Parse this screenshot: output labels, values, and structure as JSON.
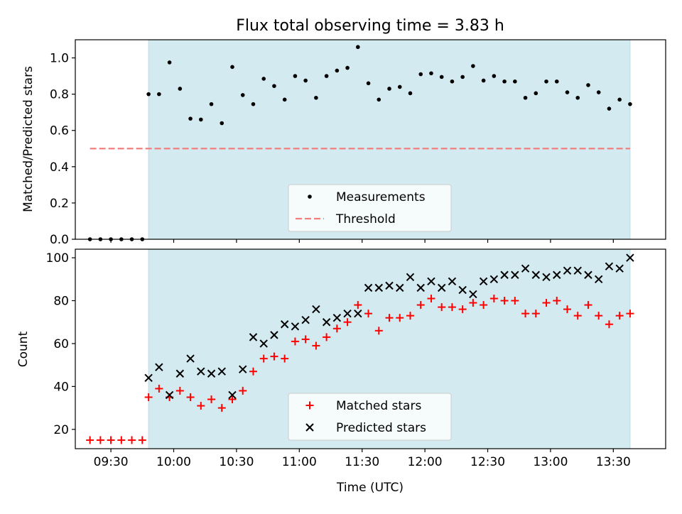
{
  "chart_data": [
    {
      "type": "scatter",
      "title": "Flux total observing time = 3.83 h",
      "xlabel": "",
      "ylabel": "Matched/Predicted stars",
      "ylim": [
        0,
        1.1
      ],
      "yticks": [
        "0.0",
        "0.2",
        "0.4",
        "0.6",
        "0.8",
        "1.0"
      ],
      "x_axis": "time",
      "xlim": [
        "09:13",
        "13:55"
      ],
      "shaded_region": {
        "from": "09:48",
        "to": "13:38",
        "color": "#d3eaf0"
      },
      "threshold": {
        "value": 0.5,
        "from": "09:20",
        "to": "13:38",
        "color": "#f08080"
      },
      "legend": {
        "position": "bottom-center",
        "entries": [
          {
            "label": "Measurements",
            "marker": "dot",
            "color": "#000000"
          },
          {
            "label": "Threshold",
            "marker": "dashed-line",
            "color": "#f08080"
          }
        ]
      },
      "series": [
        {
          "name": "Measurements",
          "color": "#000000",
          "x": [
            "09:20",
            "09:25",
            "09:30",
            "09:35",
            "09:40",
            "09:45",
            "09:48",
            "09:53",
            "09:58",
            "10:03",
            "10:08",
            "10:13",
            "10:18",
            "10:23",
            "10:28",
            "10:33",
            "10:38",
            "10:43",
            "10:48",
            "10:53",
            "10:58",
            "11:03",
            "11:08",
            "11:13",
            "11:18",
            "11:23",
            "11:28",
            "11:33",
            "11:38",
            "11:43",
            "11:48",
            "11:53",
            "11:58",
            "12:03",
            "12:08",
            "12:13",
            "12:18",
            "12:23",
            "12:28",
            "12:33",
            "12:38",
            "12:43",
            "12:48",
            "12:53",
            "12:58",
            "13:03",
            "13:08",
            "13:13",
            "13:18",
            "13:23",
            "13:28",
            "13:33",
            "13:38"
          ],
          "y": [
            0,
            0,
            0,
            0,
            0,
            0,
            0.8,
            0.8,
            0.975,
            0.83,
            0.665,
            0.66,
            0.745,
            0.64,
            0.95,
            0.795,
            0.745,
            0.885,
            0.845,
            0.77,
            0.9,
            0.875,
            0.78,
            0.9,
            0.93,
            0.945,
            1.06,
            0.86,
            0.77,
            0.83,
            0.84,
            0.805,
            0.91,
            0.915,
            0.895,
            0.87,
            0.895,
            0.955,
            0.875,
            0.9,
            0.87,
            0.87,
            0.78,
            0.805,
            0.87,
            0.87,
            0.81,
            0.78,
            0.85,
            0.81,
            0.72,
            0.77,
            0.745
          ]
        }
      ]
    },
    {
      "type": "scatter",
      "title": "",
      "xlabel": "Time (UTC)",
      "ylabel": "Count",
      "ylim": [
        11,
        104
      ],
      "yticks": [
        "20",
        "40",
        "60",
        "80",
        "100"
      ],
      "xticks": [
        "09:30",
        "10:00",
        "10:30",
        "11:00",
        "11:30",
        "12:00",
        "12:30",
        "13:00",
        "13:30"
      ],
      "x_axis": "time",
      "xlim": [
        "09:13",
        "13:55"
      ],
      "shaded_region": {
        "from": "09:48",
        "to": "13:38",
        "color": "#d3eaf0"
      },
      "legend": {
        "position": "bottom-center",
        "entries": [
          {
            "label": "Matched stars",
            "marker": "plus",
            "color": "#ff0000"
          },
          {
            "label": "Predicted stars",
            "marker": "x",
            "color": "#000000"
          }
        ]
      },
      "series": [
        {
          "name": "Matched stars",
          "color": "#ff0000",
          "x": [
            "09:20",
            "09:25",
            "09:30",
            "09:35",
            "09:40",
            "09:45",
            "09:48",
            "09:53",
            "09:58",
            "10:03",
            "10:08",
            "10:13",
            "10:18",
            "10:23",
            "10:28",
            "10:33",
            "10:38",
            "10:43",
            "10:48",
            "10:53",
            "10:58",
            "11:03",
            "11:08",
            "11:13",
            "11:18",
            "11:23",
            "11:28",
            "11:33",
            "11:38",
            "11:43",
            "11:48",
            "11:53",
            "11:58",
            "12:03",
            "12:08",
            "12:13",
            "12:18",
            "12:23",
            "12:28",
            "12:33",
            "12:38",
            "12:43",
            "12:48",
            "12:53",
            "12:58",
            "13:03",
            "13:08",
            "13:13",
            "13:18",
            "13:23",
            "13:28",
            "13:33",
            "13:38"
          ],
          "y": [
            15,
            15,
            15,
            15,
            15,
            15,
            35,
            39,
            35,
            38,
            35,
            31,
            34,
            30,
            34,
            38,
            47,
            53,
            54,
            53,
            61,
            62,
            59,
            63,
            67,
            70,
            78,
            74,
            66,
            72,
            72,
            73,
            78,
            81,
            77,
            77,
            76,
            79,
            78,
            81,
            80,
            80,
            74,
            74,
            79,
            80,
            76,
            73,
            78,
            73,
            69,
            73,
            74
          ]
        },
        {
          "name": "Predicted stars",
          "color": "#000000",
          "x": [
            "09:48",
            "09:53",
            "09:58",
            "10:03",
            "10:08",
            "10:13",
            "10:18",
            "10:23",
            "10:28",
            "10:33",
            "10:38",
            "10:43",
            "10:48",
            "10:53",
            "10:58",
            "11:03",
            "11:08",
            "11:13",
            "11:18",
            "11:23",
            "11:28",
            "11:33",
            "11:38",
            "11:43",
            "11:48",
            "11:53",
            "11:58",
            "12:03",
            "12:08",
            "12:13",
            "12:18",
            "12:23",
            "12:28",
            "12:33",
            "12:38",
            "12:43",
            "12:48",
            "12:53",
            "12:58",
            "13:03",
            "13:08",
            "13:13",
            "13:18",
            "13:23",
            "13:28",
            "13:33",
            "13:38"
          ],
          "y": [
            44,
            49,
            36,
            46,
            53,
            47,
            46,
            47,
            36,
            48,
            63,
            60,
            64,
            69,
            68,
            71,
            76,
            70,
            72,
            74,
            74,
            86,
            86,
            87,
            86,
            91,
            86,
            89,
            86,
            89,
            85,
            83,
            89,
            90,
            92,
            92,
            95,
            92,
            91,
            92,
            94,
            94,
            92,
            90,
            96,
            95,
            100
          ]
        }
      ]
    }
  ]
}
